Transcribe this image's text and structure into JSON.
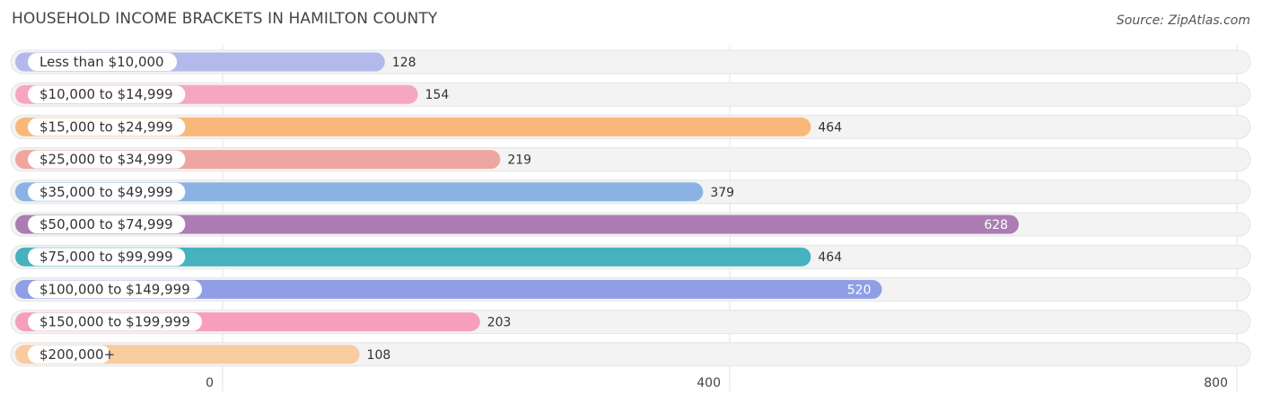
{
  "header": {
    "title": "HOUSEHOLD INCOME BRACKETS IN HAMILTON COUNTY",
    "source": "Source: ZipAtlas.com"
  },
  "chart_data": {
    "type": "bar",
    "orientation": "horizontal",
    "title": "HOUSEHOLD INCOME BRACKETS IN HAMILTON COUNTY",
    "categories": [
      "Less than $10,000",
      "$10,000 to $14,999",
      "$15,000 to $24,999",
      "$25,000 to $34,999",
      "$35,000 to $49,999",
      "$50,000 to $74,999",
      "$75,000 to $99,999",
      "$100,000 to $149,999",
      "$150,000 to $199,999",
      "$200,000+"
    ],
    "values": [
      128,
      154,
      464,
      219,
      379,
      628,
      464,
      520,
      203,
      108
    ],
    "colors": [
      "#b3b9ea",
      "#f6a6c2",
      "#f9b87a",
      "#efa5a0",
      "#8ab3e4",
      "#ab7db3",
      "#46b2bd",
      "#8f9ee5",
      "#f59ebd",
      "#f9cba0"
    ],
    "xlim": [
      0,
      800
    ],
    "ticks": [
      0,
      400,
      800
    ],
    "tick_labels": [
      "0",
      "400",
      "800"
    ],
    "value_labels_inside": [
      false,
      false,
      false,
      false,
      false,
      true,
      false,
      true,
      false,
      false
    ],
    "grid": true
  }
}
